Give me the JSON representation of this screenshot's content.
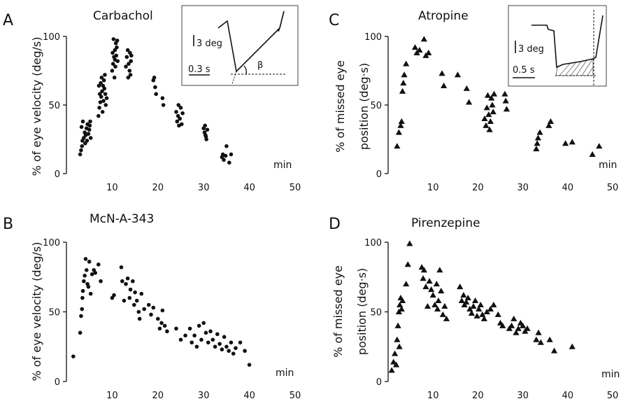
{
  "chart_data": [
    {
      "type": "scatter",
      "panel_letter": "A",
      "title": "Carbachol",
      "ylabel_lines": [
        "% of eye velocity (deg/s)"
      ],
      "xunit": "min",
      "xlim": [
        0,
        50
      ],
      "ylim": [
        0,
        100
      ],
      "xticks": [
        "10",
        "20",
        "30",
        "40",
        "50"
      ],
      "yticks": [
        "0",
        "50",
        "100"
      ],
      "marker": "circle",
      "inset": {
        "scale_y": "3 deg",
        "scale_x": "0.3 s",
        "angle_label": "β"
      },
      "points": [
        [
          3.0,
          14
        ],
        [
          3.2,
          17
        ],
        [
          3.4,
          20
        ],
        [
          3.5,
          24
        ],
        [
          3.8,
          26
        ],
        [
          4.0,
          30
        ],
        [
          4.2,
          28
        ],
        [
          4.4,
          33
        ],
        [
          4.6,
          36
        ],
        [
          4.8,
          29
        ],
        [
          5.0,
          32
        ],
        [
          5.2,
          38
        ],
        [
          3.6,
          38
        ],
        [
          4.5,
          24
        ],
        [
          5.3,
          26
        ],
        [
          3.3,
          34
        ],
        [
          4.1,
          22
        ],
        [
          5.1,
          35
        ],
        [
          7.0,
          42
        ],
        [
          7.2,
          48
        ],
        [
          7.4,
          52
        ],
        [
          7.6,
          56
        ],
        [
          7.8,
          60
        ],
        [
          8.0,
          64
        ],
        [
          8.2,
          68
        ],
        [
          8.4,
          72
        ],
        [
          7.3,
          58
        ],
        [
          7.9,
          45
        ],
        [
          8.6,
          50
        ],
        [
          8.8,
          55
        ],
        [
          7.5,
          66
        ],
        [
          8.3,
          62
        ],
        [
          7.7,
          70
        ],
        [
          8.1,
          53
        ],
        [
          8.5,
          58
        ],
        [
          7.1,
          64
        ],
        [
          10.0,
          75
        ],
        [
          10.2,
          80
        ],
        [
          10.4,
          85
        ],
        [
          10.6,
          90
        ],
        [
          10.8,
          95
        ],
        [
          11.0,
          92
        ],
        [
          10.3,
          98
        ],
        [
          10.7,
          78
        ],
        [
          11.2,
          82
        ],
        [
          10.1,
          88
        ],
        [
          10.5,
          70
        ],
        [
          10.9,
          86
        ],
        [
          11.1,
          97
        ],
        [
          10.6,
          83
        ],
        [
          13.0,
          78
        ],
        [
          13.2,
          85
        ],
        [
          13.4,
          90
        ],
        [
          13.6,
          80
        ],
        [
          13.8,
          75
        ],
        [
          14.0,
          72
        ],
        [
          14.2,
          86
        ],
        [
          13.5,
          70
        ],
        [
          13.9,
          88
        ],
        [
          14.1,
          82
        ],
        [
          19.0,
          68
        ],
        [
          19.2,
          70
        ],
        [
          19.4,
          63
        ],
        [
          19.6,
          58
        ],
        [
          21.0,
          55
        ],
        [
          21.2,
          50
        ],
        [
          24.0,
          45
        ],
        [
          24.2,
          38
        ],
        [
          24.4,
          42
        ],
        [
          24.6,
          35
        ],
        [
          24.8,
          40
        ],
        [
          25.0,
          48
        ],
        [
          25.2,
          36
        ],
        [
          25.4,
          44
        ],
        [
          24.5,
          50
        ],
        [
          30.0,
          33
        ],
        [
          30.2,
          30
        ],
        [
          30.4,
          28
        ],
        [
          30.6,
          25
        ],
        [
          30.8,
          32
        ],
        [
          30.3,
          35
        ],
        [
          30.5,
          27
        ],
        [
          34.0,
          12
        ],
        [
          34.4,
          10
        ],
        [
          34.8,
          13
        ],
        [
          35.0,
          20
        ],
        [
          35.6,
          8
        ],
        [
          36.0,
          14
        ],
        [
          34.2,
          14
        ]
      ]
    },
    {
      "type": "scatter",
      "panel_letter": "B",
      "title": "McN-A-343",
      "ylabel_lines": [
        "% of eye velocity (deg/s)"
      ],
      "xunit": "min",
      "xlim": [
        0,
        50
      ],
      "ylim": [
        0,
        100
      ],
      "xticks": [
        "10",
        "20",
        "30",
        "40",
        "50"
      ],
      "yticks": [
        "0",
        "50",
        "100"
      ],
      "marker": "circle",
      "points": [
        [
          1.5,
          18
        ],
        [
          3.0,
          35
        ],
        [
          3.2,
          47
        ],
        [
          3.4,
          52
        ],
        [
          3.5,
          60
        ],
        [
          3.6,
          65
        ],
        [
          3.8,
          72
        ],
        [
          4.0,
          76
        ],
        [
          4.2,
          88
        ],
        [
          4.4,
          80
        ],
        [
          4.6,
          70
        ],
        [
          4.8,
          68
        ],
        [
          5.0,
          86
        ],
        [
          5.3,
          63
        ],
        [
          5.6,
          77
        ],
        [
          6.0,
          80
        ],
        [
          6.3,
          78
        ],
        [
          7.0,
          84
        ],
        [
          7.5,
          72
        ],
        [
          10.0,
          60
        ],
        [
          10.4,
          62
        ],
        [
          12.0,
          82
        ],
        [
          12.2,
          72
        ],
        [
          12.6,
          58
        ],
        [
          13.0,
          70
        ],
        [
          13.4,
          74
        ],
        [
          13.8,
          60
        ],
        [
          14.0,
          66
        ],
        [
          14.5,
          72
        ],
        [
          14.8,
          55
        ],
        [
          15.0,
          64
        ],
        [
          15.4,
          58
        ],
        [
          15.8,
          50
        ],
        [
          16.0,
          45
        ],
        [
          16.4,
          63
        ],
        [
          17.0,
          52
        ],
        [
          18.0,
          55
        ],
        [
          18.5,
          48
        ],
        [
          19.0,
          53
        ],
        [
          20.0,
          45
        ],
        [
          20.4,
          38
        ],
        [
          20.8,
          42
        ],
        [
          21.0,
          51
        ],
        [
          21.5,
          40
        ],
        [
          22.0,
          36
        ],
        [
          24.0,
          38
        ],
        [
          25.0,
          30
        ],
        [
          26.0,
          33
        ],
        [
          27.0,
          38
        ],
        [
          27.4,
          28
        ],
        [
          28.0,
          33
        ],
        [
          28.5,
          25
        ],
        [
          29.0,
          40
        ],
        [
          29.5,
          30
        ],
        [
          30.0,
          42
        ],
        [
          30.5,
          35
        ],
        [
          31.0,
          28
        ],
        [
          31.5,
          36
        ],
        [
          32.0,
          30
        ],
        [
          32.5,
          25
        ],
        [
          33.0,
          34
        ],
        [
          33.5,
          27
        ],
        [
          34.0,
          23
        ],
        [
          34.5,
          32
        ],
        [
          35.0,
          25
        ],
        [
          35.5,
          22
        ],
        [
          36.0,
          28
        ],
        [
          36.5,
          20
        ],
        [
          37.0,
          24
        ],
        [
          38.0,
          28
        ],
        [
          39.0,
          22
        ],
        [
          40.0,
          12
        ]
      ]
    },
    {
      "type": "scatter",
      "panel_letter": "C",
      "title": "Atropine",
      "ylabel_lines": [
        "% of missed eye",
        "position (deg·s)"
      ],
      "xunit": "min",
      "xlim": [
        0,
        50
      ],
      "ylim": [
        0,
        100
      ],
      "xticks": [
        "10",
        "20",
        "30",
        "40",
        "50"
      ],
      "yticks": [
        "0",
        "50",
        "100"
      ],
      "marker": "triangle",
      "inset": {
        "scale_y": "3 deg",
        "scale_x": "0.5 s"
      },
      "points": [
        [
          2.0,
          20
        ],
        [
          2.4,
          30
        ],
        [
          2.8,
          35
        ],
        [
          3.0,
          38
        ],
        [
          3.2,
          60
        ],
        [
          3.4,
          66
        ],
        [
          3.6,
          72
        ],
        [
          4.0,
          80
        ],
        [
          6.0,
          92
        ],
        [
          6.4,
          88
        ],
        [
          7.0,
          90
        ],
        [
          8.0,
          98
        ],
        [
          8.4,
          86
        ],
        [
          9.0,
          88
        ],
        [
          12.0,
          73
        ],
        [
          12.4,
          64
        ],
        [
          15.5,
          72
        ],
        [
          17.5,
          62
        ],
        [
          18.0,
          52
        ],
        [
          21.5,
          40
        ],
        [
          21.8,
          35
        ],
        [
          22.0,
          48
        ],
        [
          22.2,
          57
        ],
        [
          22.4,
          43
        ],
        [
          22.6,
          32
        ],
        [
          22.8,
          38
        ],
        [
          23.0,
          55
        ],
        [
          23.2,
          50
        ],
        [
          23.4,
          45
        ],
        [
          23.6,
          58
        ],
        [
          26.0,
          58
        ],
        [
          26.2,
          53
        ],
        [
          26.4,
          47
        ],
        [
          33.0,
          18
        ],
        [
          33.2,
          22
        ],
        [
          33.4,
          26
        ],
        [
          33.8,
          30
        ],
        [
          35.8,
          35
        ],
        [
          36.2,
          38
        ],
        [
          39.5,
          22
        ],
        [
          41.0,
          23
        ],
        [
          45.5,
          14
        ],
        [
          47.0,
          20
        ]
      ]
    },
    {
      "type": "scatter",
      "panel_letter": "D",
      "title": "Pirenzepine",
      "ylabel_lines": [
        "% of missed eye",
        "position (deg·s)"
      ],
      "xunit": "min",
      "xlim": [
        0,
        50
      ],
      "ylim": [
        0,
        100
      ],
      "xticks": [
        "10",
        "20",
        "30",
        "40",
        "50"
      ],
      "yticks": [
        "0",
        "50",
        "100"
      ],
      "marker": "triangle",
      "points": [
        [
          0.8,
          8
        ],
        [
          1.2,
          14
        ],
        [
          1.5,
          20
        ],
        [
          2.0,
          30
        ],
        [
          2.2,
          40
        ],
        [
          2.4,
          50
        ],
        [
          2.6,
          55
        ],
        [
          2.8,
          60
        ],
        [
          3.0,
          52
        ],
        [
          3.2,
          58
        ],
        [
          1.8,
          12
        ],
        [
          2.5,
          25
        ],
        [
          4.0,
          70
        ],
        [
          4.4,
          84
        ],
        [
          4.8,
          99
        ],
        [
          7.5,
          82
        ],
        [
          7.8,
          74
        ],
        [
          8.0,
          80
        ],
        [
          8.4,
          68
        ],
        [
          8.8,
          54
        ],
        [
          9.2,
          72
        ],
        [
          9.6,
          66
        ],
        [
          10.0,
          62
        ],
        [
          10.4,
          55
        ],
        [
          10.8,
          70
        ],
        [
          11.0,
          52
        ],
        [
          11.2,
          58
        ],
        [
          11.5,
          80
        ],
        [
          11.8,
          65
        ],
        [
          12.2,
          48
        ],
        [
          12.6,
          54
        ],
        [
          13.0,
          45
        ],
        [
          16.0,
          68
        ],
        [
          16.4,
          58
        ],
        [
          16.8,
          62
        ],
        [
          17.0,
          55
        ],
        [
          17.4,
          57
        ],
        [
          17.8,
          60
        ],
        [
          18.2,
          52
        ],
        [
          18.6,
          49
        ],
        [
          19.0,
          54
        ],
        [
          19.4,
          58
        ],
        [
          19.8,
          47
        ],
        [
          20.2,
          52
        ],
        [
          20.6,
          55
        ],
        [
          21.0,
          48
        ],
        [
          21.4,
          45
        ],
        [
          22.0,
          50
        ],
        [
          22.8,
          52
        ],
        [
          23.5,
          55
        ],
        [
          24.5,
          48
        ],
        [
          25.0,
          42
        ],
        [
          25.5,
          40
        ],
        [
          27.0,
          38
        ],
        [
          27.5,
          40
        ],
        [
          28.0,
          45
        ],
        [
          28.5,
          35
        ],
        [
          29.0,
          38
        ],
        [
          29.5,
          42
        ],
        [
          30.0,
          40
        ],
        [
          30.5,
          36
        ],
        [
          31.0,
          38
        ],
        [
          33.0,
          30
        ],
        [
          33.5,
          35
        ],
        [
          34.0,
          28
        ],
        [
          36.0,
          30
        ],
        [
          37.0,
          22
        ],
        [
          41.0,
          25
        ]
      ]
    }
  ]
}
